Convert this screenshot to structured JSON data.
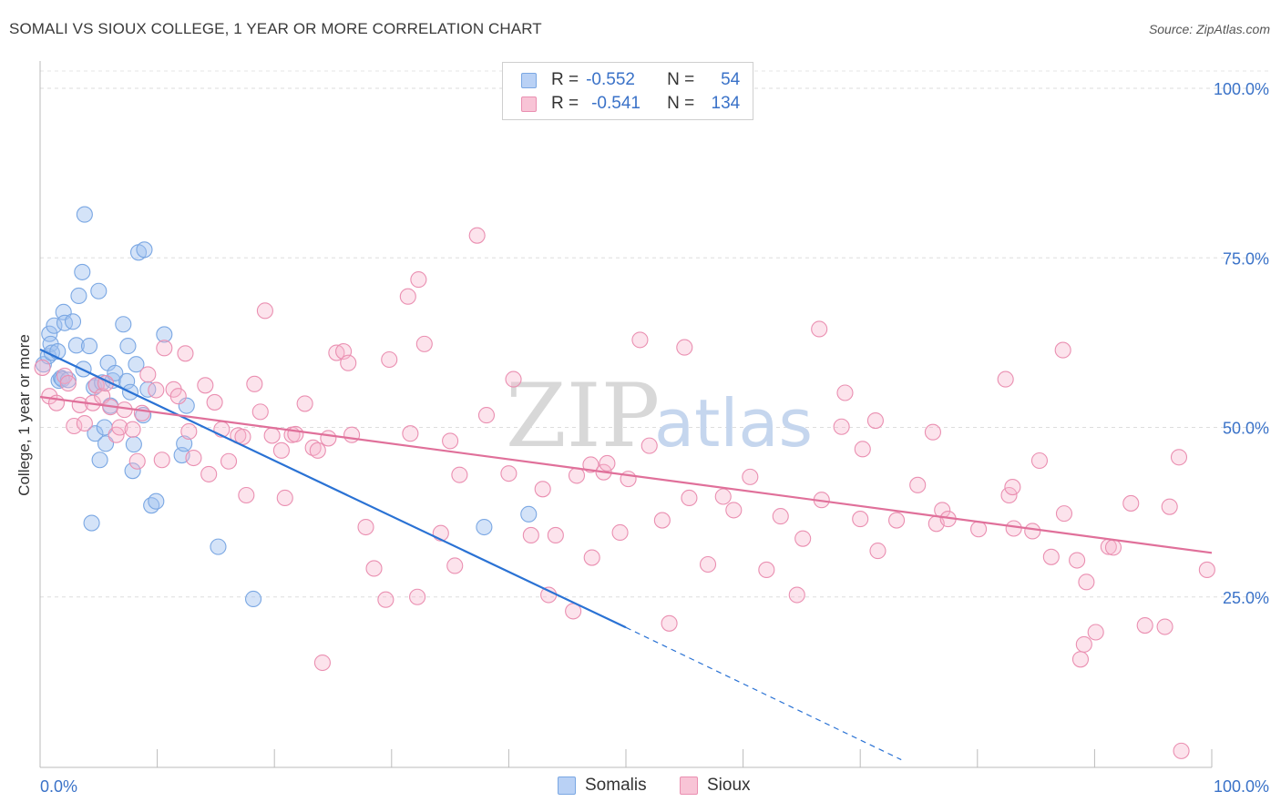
{
  "header": {
    "title": "SOMALI VS SIOUX COLLEGE, 1 YEAR OR MORE CORRELATION CHART",
    "source": "Source: ZipAtlas.com"
  },
  "legend": {
    "r_label": "R =",
    "n_label": "N =",
    "rows": [
      {
        "name": "Somalis",
        "r": "-0.552",
        "n": "54",
        "color": "#7aa7e3"
      },
      {
        "name": "Sioux",
        "r": "-0.541",
        "n": "134",
        "color": "#ea8fb1"
      }
    ]
  },
  "watermark": {
    "zip": "ZIP",
    "atlas": "atlas"
  },
  "chart_data": {
    "type": "scatter",
    "title": "SOMALI VS SIOUX COLLEGE, 1 YEAR OR MORE CORRELATION CHART",
    "xlabel": "",
    "ylabel": "College, 1 year or more",
    "xlim": [
      0,
      100
    ],
    "ylim": [
      0,
      100
    ],
    "x_tick_labels": [
      "0.0%",
      "100.0%"
    ],
    "y_ticks": [
      25,
      50,
      75,
      100
    ],
    "y_tick_labels": [
      "25.0%",
      "50.0%",
      "75.0%",
      "100.0%"
    ],
    "grid": true,
    "legend_placement": "top-center",
    "series": [
      {
        "name": "Somalis",
        "color": "#7aa7e3",
        "line_color": "#2a72d4",
        "trend": {
          "x_start": 0,
          "y_start": 61.5,
          "x_end": 50,
          "y_end": 20.5,
          "dashed_x_end": 73.5,
          "dashed_y_end": 1
        },
        "points": [
          [
            0.3,
            59.3
          ],
          [
            0.7,
            60.5
          ],
          [
            0.8,
            63.8
          ],
          [
            0.9,
            62.3
          ],
          [
            1.0,
            61.0
          ],
          [
            1.2,
            65.0
          ],
          [
            1.5,
            61.2
          ],
          [
            1.6,
            56.9
          ],
          [
            1.8,
            57.3
          ],
          [
            1.9,
            57.1
          ],
          [
            2.0,
            67.0
          ],
          [
            2.1,
            65.4
          ],
          [
            2.4,
            57.0
          ],
          [
            2.8,
            65.6
          ],
          [
            3.1,
            62.1
          ],
          [
            3.3,
            69.4
          ],
          [
            3.6,
            72.9
          ],
          [
            3.7,
            58.6
          ],
          [
            3.8,
            81.4
          ],
          [
            4.2,
            62.0
          ],
          [
            4.4,
            35.9
          ],
          [
            4.6,
            55.9
          ],
          [
            4.7,
            49.1
          ],
          [
            4.8,
            56.2
          ],
          [
            5.0,
            70.1
          ],
          [
            5.1,
            45.2
          ],
          [
            5.3,
            56.6
          ],
          [
            5.5,
            50.0
          ],
          [
            5.6,
            47.6
          ],
          [
            5.8,
            59.5
          ],
          [
            6.0,
            53.2
          ],
          [
            6.2,
            56.9
          ],
          [
            6.4,
            58.0
          ],
          [
            7.1,
            65.2
          ],
          [
            7.4,
            56.8
          ],
          [
            7.5,
            62.0
          ],
          [
            7.7,
            55.2
          ],
          [
            7.9,
            43.6
          ],
          [
            8.0,
            47.5
          ],
          [
            8.2,
            59.3
          ],
          [
            8.4,
            75.8
          ],
          [
            8.8,
            51.8
          ],
          [
            8.9,
            76.2
          ],
          [
            9.2,
            55.6
          ],
          [
            9.5,
            38.5
          ],
          [
            9.9,
            39.1
          ],
          [
            10.6,
            63.7
          ],
          [
            12.1,
            45.9
          ],
          [
            12.3,
            47.6
          ],
          [
            12.5,
            53.2
          ],
          [
            15.2,
            32.4
          ],
          [
            18.2,
            24.7
          ],
          [
            37.9,
            35.3
          ],
          [
            41.7,
            37.2
          ]
        ]
      },
      {
        "name": "Sioux",
        "color": "#ea8fb1",
        "line_color": "#e0709a",
        "trend": {
          "x_start": 0,
          "y_start": 54.5,
          "x_end": 100,
          "y_end": 31.5
        },
        "points": [
          [
            0.2,
            58.8
          ],
          [
            0.8,
            54.6
          ],
          [
            1.4,
            53.6
          ],
          [
            2.1,
            57.6
          ],
          [
            2.4,
            56.5
          ],
          [
            2.9,
            50.2
          ],
          [
            3.4,
            53.3
          ],
          [
            3.8,
            50.6
          ],
          [
            4.5,
            53.6
          ],
          [
            4.8,
            56.2
          ],
          [
            5.3,
            54.6
          ],
          [
            5.6,
            56.5
          ],
          [
            6.0,
            53.0
          ],
          [
            6.5,
            48.9
          ],
          [
            6.8,
            50.0
          ],
          [
            7.2,
            52.6
          ],
          [
            7.9,
            49.7
          ],
          [
            8.3,
            45.0
          ],
          [
            8.7,
            52.1
          ],
          [
            9.2,
            57.8
          ],
          [
            9.9,
            55.5
          ],
          [
            10.4,
            45.2
          ],
          [
            10.6,
            61.7
          ],
          [
            11.4,
            55.6
          ],
          [
            11.8,
            54.6
          ],
          [
            12.4,
            60.9
          ],
          [
            12.7,
            49.4
          ],
          [
            13.1,
            45.5
          ],
          [
            14.1,
            56.2
          ],
          [
            14.4,
            43.1
          ],
          [
            14.9,
            53.7
          ],
          [
            15.5,
            49.7
          ],
          [
            16.1,
            45.0
          ],
          [
            16.9,
            48.8
          ],
          [
            17.3,
            48.6
          ],
          [
            17.6,
            40.0
          ],
          [
            18.3,
            56.4
          ],
          [
            18.8,
            52.3
          ],
          [
            19.2,
            67.2
          ],
          [
            19.8,
            48.8
          ],
          [
            20.6,
            46.6
          ],
          [
            20.9,
            39.6
          ],
          [
            21.5,
            48.9
          ],
          [
            21.8,
            49.0
          ],
          [
            22.6,
            53.5
          ],
          [
            23.3,
            47.0
          ],
          [
            23.7,
            46.6
          ],
          [
            24.1,
            15.3
          ],
          [
            24.6,
            48.4
          ],
          [
            25.3,
            61.0
          ],
          [
            25.9,
            61.2
          ],
          [
            26.3,
            59.5
          ],
          [
            26.6,
            48.9
          ],
          [
            27.8,
            35.3
          ],
          [
            28.5,
            29.2
          ],
          [
            29.5,
            24.6
          ],
          [
            29.8,
            60.0
          ],
          [
            31.4,
            69.3
          ],
          [
            31.6,
            49.1
          ],
          [
            32.2,
            25.0
          ],
          [
            32.3,
            71.8
          ],
          [
            32.8,
            62.3
          ],
          [
            34.2,
            34.4
          ],
          [
            35.0,
            48.0
          ],
          [
            35.4,
            29.6
          ],
          [
            35.8,
            43.0
          ],
          [
            37.3,
            78.3
          ],
          [
            38.1,
            51.8
          ],
          [
            40.0,
            43.2
          ],
          [
            40.4,
            57.1
          ],
          [
            41.9,
            34.1
          ],
          [
            42.9,
            40.9
          ],
          [
            43.4,
            25.3
          ],
          [
            44.0,
            34.1
          ],
          [
            45.5,
            22.9
          ],
          [
            45.8,
            42.9
          ],
          [
            47.0,
            44.5
          ],
          [
            47.1,
            30.8
          ],
          [
            48.1,
            43.4
          ],
          [
            48.4,
            44.7
          ],
          [
            49.5,
            34.5
          ],
          [
            50.2,
            42.4
          ],
          [
            51.2,
            62.9
          ],
          [
            52.0,
            47.3
          ],
          [
            53.1,
            36.3
          ],
          [
            53.7,
            21.1
          ],
          [
            55.0,
            61.8
          ],
          [
            55.4,
            39.6
          ],
          [
            57.0,
            29.8
          ],
          [
            58.3,
            39.8
          ],
          [
            59.2,
            37.8
          ],
          [
            60.6,
            42.7
          ],
          [
            62.0,
            29.0
          ],
          [
            63.2,
            36.9
          ],
          [
            64.6,
            25.3
          ],
          [
            65.1,
            33.6
          ],
          [
            66.5,
            64.5
          ],
          [
            66.7,
            39.3
          ],
          [
            68.4,
            50.1
          ],
          [
            68.7,
            55.1
          ],
          [
            70.0,
            36.5
          ],
          [
            70.2,
            46.8
          ],
          [
            71.3,
            51.0
          ],
          [
            71.5,
            31.8
          ],
          [
            73.1,
            36.3
          ],
          [
            74.9,
            41.5
          ],
          [
            76.2,
            49.3
          ],
          [
            76.5,
            35.8
          ],
          [
            77.0,
            37.8
          ],
          [
            77.5,
            36.5
          ],
          [
            80.1,
            35.0
          ],
          [
            82.4,
            57.1
          ],
          [
            82.7,
            40.0
          ],
          [
            83.0,
            41.2
          ],
          [
            83.1,
            35.1
          ],
          [
            84.7,
            34.7
          ],
          [
            85.3,
            45.1
          ],
          [
            86.3,
            30.9
          ],
          [
            87.3,
            61.4
          ],
          [
            87.4,
            37.3
          ],
          [
            88.5,
            30.4
          ],
          [
            88.8,
            15.8
          ],
          [
            89.1,
            18.0
          ],
          [
            89.3,
            27.2
          ],
          [
            90.1,
            19.8
          ],
          [
            91.2,
            32.4
          ],
          [
            91.6,
            32.3
          ],
          [
            93.1,
            38.8
          ],
          [
            94.3,
            20.8
          ],
          [
            96.0,
            20.6
          ],
          [
            96.4,
            38.3
          ],
          [
            97.2,
            45.6
          ],
          [
            97.4,
            2.3
          ],
          [
            99.6,
            29.0
          ]
        ]
      }
    ]
  }
}
